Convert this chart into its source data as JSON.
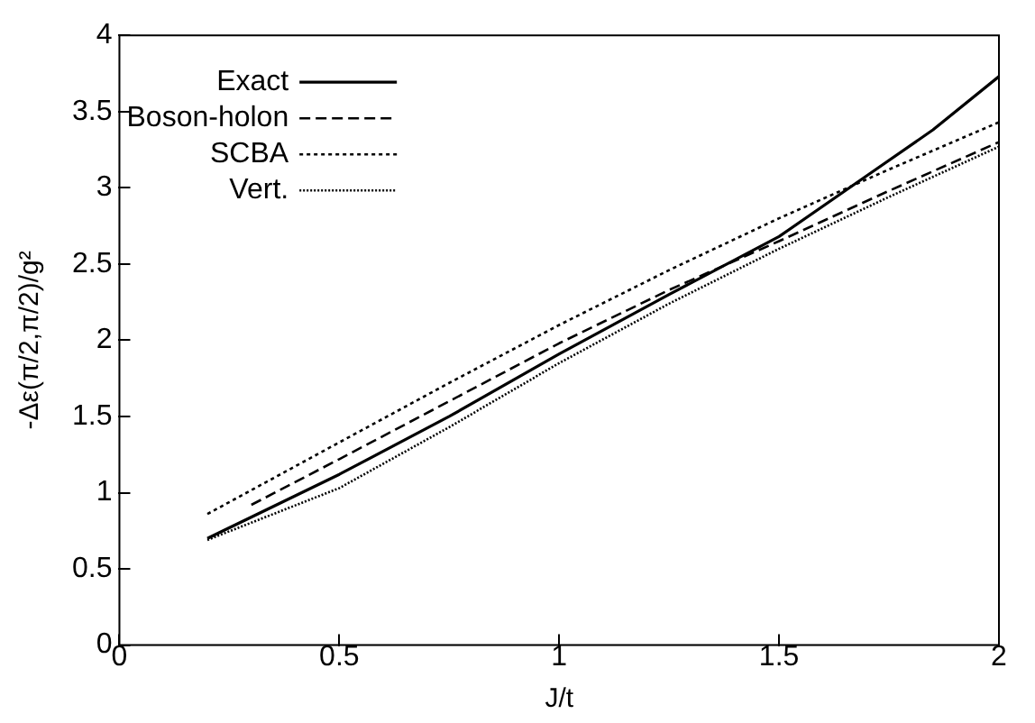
{
  "chart_data": {
    "type": "line",
    "xlabel": "J/t",
    "ylabel": "-Δε(π/2,π/2)/g²",
    "xlim": [
      0,
      2
    ],
    "xticks": [
      0,
      0.5,
      1,
      1.5,
      2
    ],
    "ylim": [
      0,
      4
    ],
    "yticks": [
      0,
      0.5,
      1,
      1.5,
      2,
      2.5,
      3,
      3.5,
      4
    ],
    "grid": false,
    "legend": "top left",
    "marker": "none",
    "series": [
      {
        "name": "Exact",
        "color": "#000000",
        "line_style": "solid",
        "x": [
          0.2,
          0.5,
          0.75,
          1,
          1.25,
          1.5,
          1.7,
          1.85,
          2
        ],
        "values": [
          0.7,
          1.12,
          1.5,
          1.91,
          2.3,
          2.68,
          3.08,
          3.38,
          3.73
        ]
      },
      {
        "name": "Boson-holon",
        "color": "#000000",
        "line_style": "dashed",
        "x": [
          0.3,
          0.5,
          0.75,
          1,
          1.25,
          1.5,
          1.75,
          2
        ],
        "values": [
          0.92,
          1.22,
          1.6,
          1.98,
          2.33,
          2.65,
          2.98,
          3.3
        ]
      },
      {
        "name": "SCBA",
        "color": "#000000",
        "line_style": "dotted",
        "x": [
          0.2,
          0.5,
          0.75,
          1,
          1.25,
          1.5,
          1.75,
          2
        ],
        "values": [
          0.86,
          1.33,
          1.72,
          2.1,
          2.46,
          2.8,
          3.12,
          3.43
        ]
      },
      {
        "name": "Vert.",
        "color": "#000000",
        "line_style": "dotted",
        "x": [
          0.2,
          0.5,
          0.75,
          1,
          1.25,
          1.5,
          1.75,
          2
        ],
        "values": [
          0.69,
          1.03,
          1.43,
          1.85,
          2.24,
          2.6,
          2.94,
          3.27
        ]
      }
    ]
  }
}
